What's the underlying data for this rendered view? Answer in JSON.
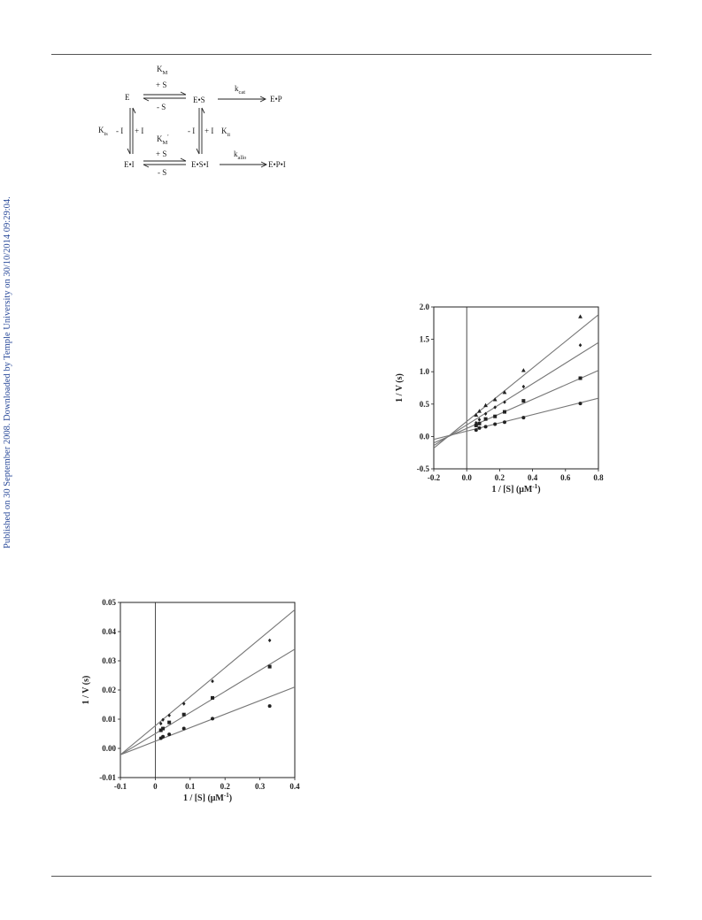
{
  "side_note": "Published on 30 September 2008. Downloaded by Temple University on 30/10/2014 09:29:04.",
  "scheme": {
    "E": "E",
    "ES": "E•S",
    "EP": "E•P",
    "EI": "E•I",
    "ESI": "E•S•I",
    "EPI": "E•P•I",
    "KM": "K",
    "KM_sub": "M",
    "KMp": "K",
    "KMp_sub": "M",
    "KMp_prime": "'",
    "kcat": "k",
    "kcat_sub": "cat",
    "kallo": "k",
    "kallo_sub": "allo",
    "Kis": "K",
    "Kis_sub": "is",
    "Kii": "K",
    "Kii_sub": "ii",
    "plusS": "+ S",
    "minusS": "- S",
    "plusI": "+ I",
    "minusI": "- I"
  },
  "chart_data": [
    {
      "type": "scatter",
      "id": "upper-plot",
      "title": "",
      "xlabel": "1 / [S] (μM",
      "xlabel_sup": "-1",
      "xlabel_end": ")",
      "ylabel": "1 / V (s)",
      "xlim": [
        -0.2,
        0.8
      ],
      "ylim": [
        -0.5,
        2.0
      ],
      "xticks": [
        "-0.2",
        "0.0",
        "0.2",
        "0.4",
        "0.6",
        "0.8"
      ],
      "yticks": [
        "-0.5",
        "0.0",
        "0.5",
        "1.0",
        "1.5",
        "2.0"
      ],
      "series": [
        {
          "marker": "circle",
          "x": [
            0.057,
            0.077,
            0.115,
            0.172,
            0.23,
            0.345,
            0.69
          ],
          "y": [
            0.1,
            0.13,
            0.15,
            0.19,
            0.22,
            0.29,
            0.51
          ],
          "line": [
            [
              -0.2,
              -0.045
            ],
            [
              0.8,
              0.59
            ]
          ]
        },
        {
          "marker": "square",
          "x": [
            0.057,
            0.077,
            0.115,
            0.172,
            0.23,
            0.345,
            0.69
          ],
          "y": [
            0.17,
            0.2,
            0.27,
            0.31,
            0.38,
            0.55,
            0.9
          ],
          "line": [
            [
              -0.2,
              -0.1
            ],
            [
              0.8,
              1.02
            ]
          ]
        },
        {
          "marker": "diamond",
          "x": [
            0.057,
            0.077,
            0.115,
            0.172,
            0.23,
            0.345,
            0.69
          ],
          "y": [
            0.21,
            0.26,
            0.35,
            0.45,
            0.53,
            0.77,
            1.41
          ],
          "line": [
            [
              -0.2,
              -0.14
            ],
            [
              0.8,
              1.45
            ]
          ]
        },
        {
          "marker": "triangle",
          "x": [
            0.057,
            0.077,
            0.115,
            0.172,
            0.23,
            0.345,
            0.69
          ],
          "y": [
            0.33,
            0.39,
            0.48,
            0.57,
            0.68,
            1.02,
            1.85
          ],
          "line": [
            [
              -0.2,
              -0.18
            ],
            [
              0.8,
              1.88
            ]
          ]
        }
      ],
      "zero_vline": 0.0
    },
    {
      "type": "scatter",
      "id": "lower-plot",
      "title": "",
      "xlabel": "1 / [S] (μM",
      "xlabel_sup": "-1",
      "xlabel_end": ")",
      "ylabel": "1 / V (s)",
      "xlim": [
        -0.1,
        0.4
      ],
      "ylim": [
        -0.01,
        0.05
      ],
      "xticks": [
        "-0.1",
        "0",
        "0.1",
        "0.2",
        "0.3",
        "0.4"
      ],
      "yticks": [
        "-0.01",
        "0.00",
        "0.01",
        "0.02",
        "0.03",
        "0.04",
        "0.05"
      ],
      "series": [
        {
          "marker": "circle",
          "x": [
            0.016,
            0.022,
            0.04,
            0.082,
            0.164,
            0.328
          ],
          "y": [
            0.0035,
            0.004,
            0.0048,
            0.0068,
            0.0102,
            0.0145
          ],
          "line": [
            [
              -0.1,
              -0.0022
            ],
            [
              0.4,
              0.021
            ]
          ]
        },
        {
          "marker": "square",
          "x": [
            0.016,
            0.022,
            0.04,
            0.082,
            0.164,
            0.328
          ],
          "y": [
            0.0062,
            0.0068,
            0.0089,
            0.0116,
            0.0173,
            0.028
          ],
          "line": [
            [
              -0.1,
              -0.0022
            ],
            [
              0.4,
              0.034
            ]
          ]
        },
        {
          "marker": "diamond",
          "x": [
            0.016,
            0.022,
            0.04,
            0.082,
            0.164,
            0.328
          ],
          "y": [
            0.0085,
            0.0098,
            0.0113,
            0.0153,
            0.023,
            0.037
          ],
          "line": [
            [
              -0.1,
              -0.0022
            ],
            [
              0.4,
              0.0475
            ]
          ]
        }
      ],
      "zero_vline": 0.0
    }
  ]
}
